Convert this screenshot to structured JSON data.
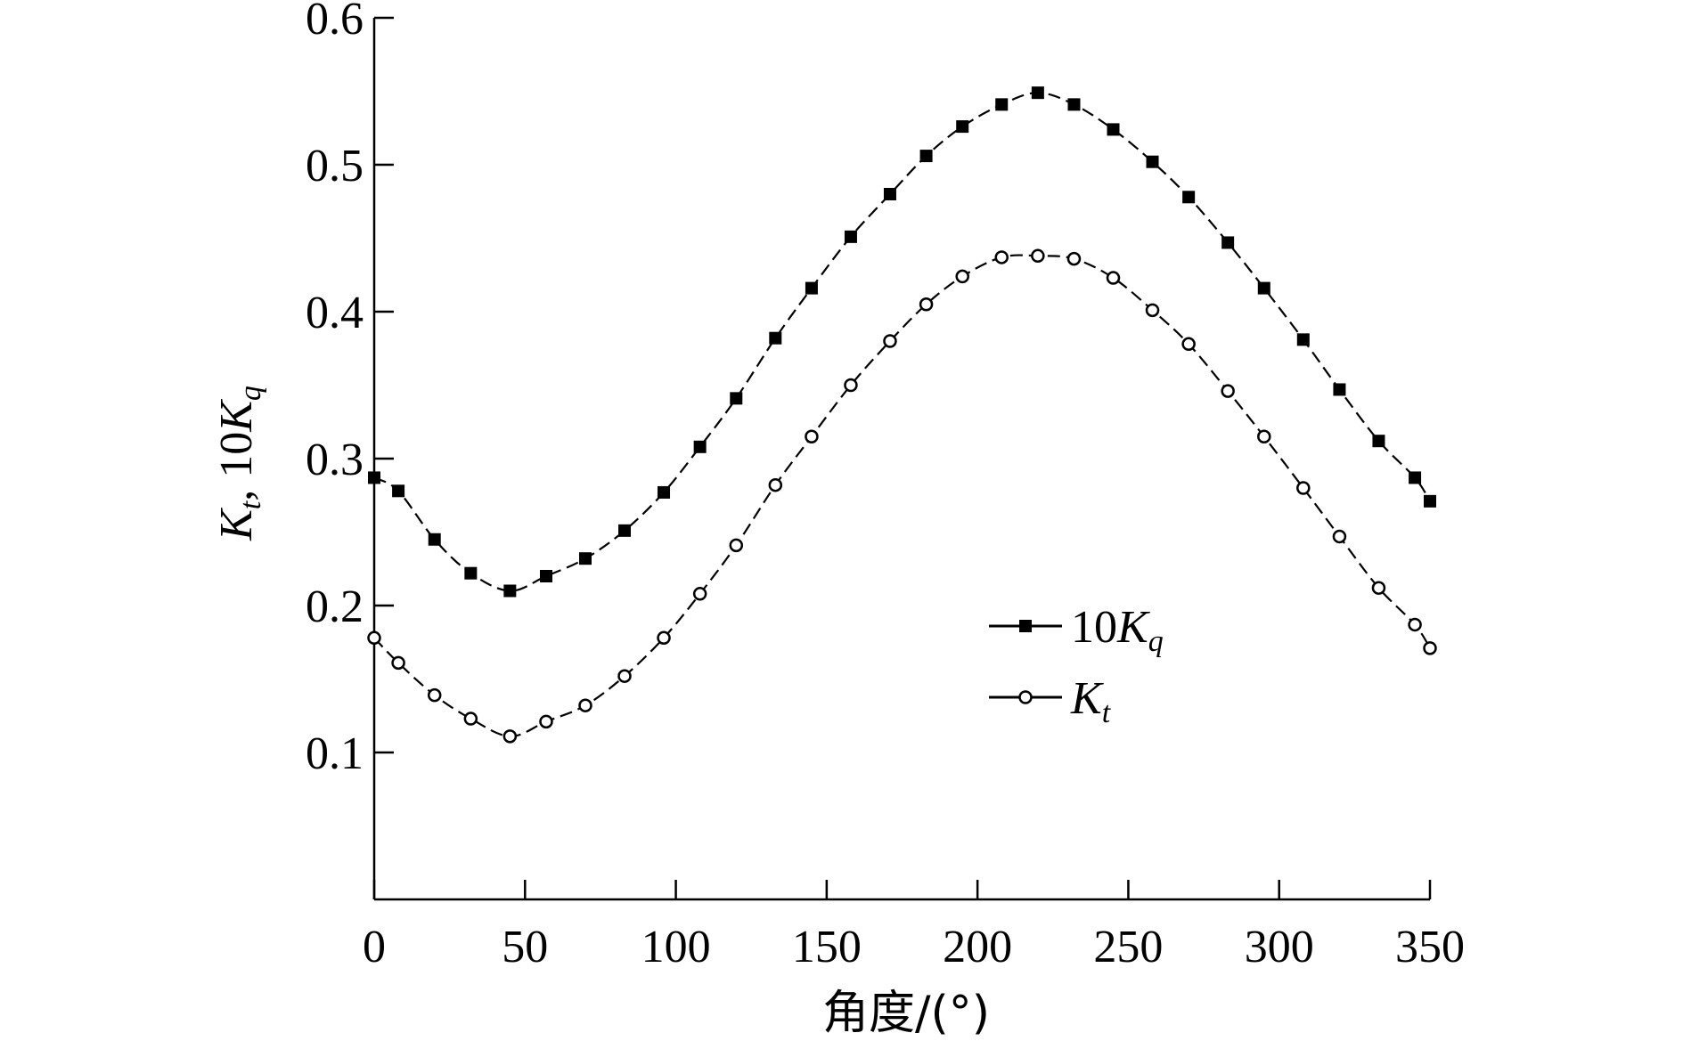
{
  "chart_data": {
    "type": "line",
    "xlabel": "角度/(°)",
    "ylabel": "Kt, 10Kq",
    "ylabel_parts": {
      "kt_base": "K",
      "kt_sub": "t",
      "sep": ",  ",
      "kq_coef": "10",
      "kq_base": "K",
      "kq_sub": "q"
    },
    "xlim": [
      0,
      350
    ],
    "ylim": [
      0,
      0.6
    ],
    "xticks": [
      "0",
      "50",
      "100",
      "150",
      "200",
      "250",
      "300",
      "350"
    ],
    "yticks": [
      "0.1",
      "0.2",
      "0.3",
      "0.4",
      "0.5",
      "0.6"
    ],
    "grid": false,
    "legend_position": "center-right",
    "x": [
      0,
      8,
      20,
      32,
      45,
      57,
      70,
      83,
      96,
      108,
      120,
      133,
      145,
      158,
      171,
      183,
      195,
      208,
      220,
      232,
      245,
      258,
      270,
      283,
      295,
      308,
      320,
      333,
      345,
      350
    ],
    "series": [
      {
        "name": "10Kq",
        "legend": {
          "coef": "10",
          "base": "K",
          "sub": "q"
        },
        "marker": "filled-square",
        "values": [
          0.287,
          0.278,
          0.245,
          0.222,
          0.21,
          0.22,
          0.232,
          0.251,
          0.277,
          0.308,
          0.341,
          0.382,
          0.416,
          0.451,
          0.48,
          0.506,
          0.526,
          0.541,
          0.549,
          0.541,
          0.524,
          0.502,
          0.478,
          0.447,
          0.416,
          0.381,
          0.347,
          0.312,
          0.287,
          0.271
        ]
      },
      {
        "name": "Kt",
        "legend": {
          "coef": "",
          "base": "K",
          "sub": "t"
        },
        "marker": "open-circle",
        "values": [
          0.178,
          0.161,
          0.139,
          0.123,
          0.111,
          0.121,
          0.132,
          0.152,
          0.178,
          0.208,
          0.241,
          0.282,
          0.315,
          0.35,
          0.38,
          0.405,
          0.424,
          0.437,
          0.438,
          0.436,
          0.423,
          0.401,
          0.378,
          0.346,
          0.315,
          0.28,
          0.247,
          0.212,
          0.187,
          0.171
        ]
      }
    ]
  }
}
